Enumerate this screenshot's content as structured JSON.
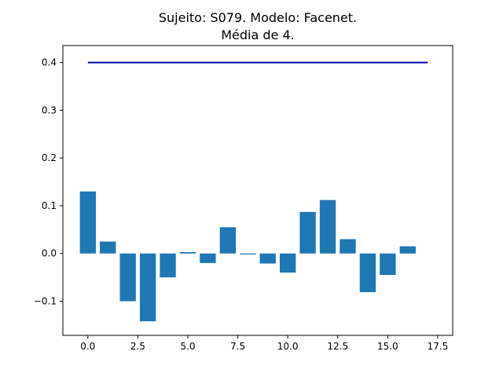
{
  "chart_data": {
    "type": "bar",
    "title_line1": "Sujeito: S079. Modelo: Facenet.",
    "title_line2": "Média de 4.",
    "xlabel": "",
    "ylabel": "",
    "x": [
      0,
      1,
      2,
      3,
      4,
      5,
      6,
      7,
      8,
      9,
      10,
      11,
      12,
      13,
      14,
      15,
      16
    ],
    "values": [
      0.13,
      0.025,
      -0.1,
      -0.142,
      -0.05,
      0.003,
      -0.02,
      0.055,
      -0.002,
      -0.021,
      -0.04,
      0.087,
      0.112,
      0.03,
      -0.081,
      -0.045,
      0.015
    ],
    "bar_width": 0.8,
    "threshold_line": {
      "y": 0.4,
      "x_start": 0,
      "x_end": 17
    },
    "xlim": [
      -1.25,
      18.25
    ],
    "ylim": [
      -0.1715,
      0.4355
    ],
    "x_ticks": [
      0,
      2.5,
      5,
      7.5,
      10,
      12.5,
      15,
      17.5
    ],
    "x_tick_labels": [
      "0.0",
      "2.5",
      "5.0",
      "7.5",
      "10.0",
      "12.5",
      "15.0",
      "17.5"
    ],
    "y_ticks": [
      -0.1,
      0,
      0.1,
      0.2,
      0.3,
      0.4
    ],
    "y_tick_labels": [
      "−0.1",
      "0.0",
      "0.1",
      "0.2",
      "0.3",
      "0.4"
    ],
    "grid": false,
    "colors": {
      "bar": "#1f77b4",
      "line": "#0000aa",
      "axes": "#000000"
    }
  }
}
